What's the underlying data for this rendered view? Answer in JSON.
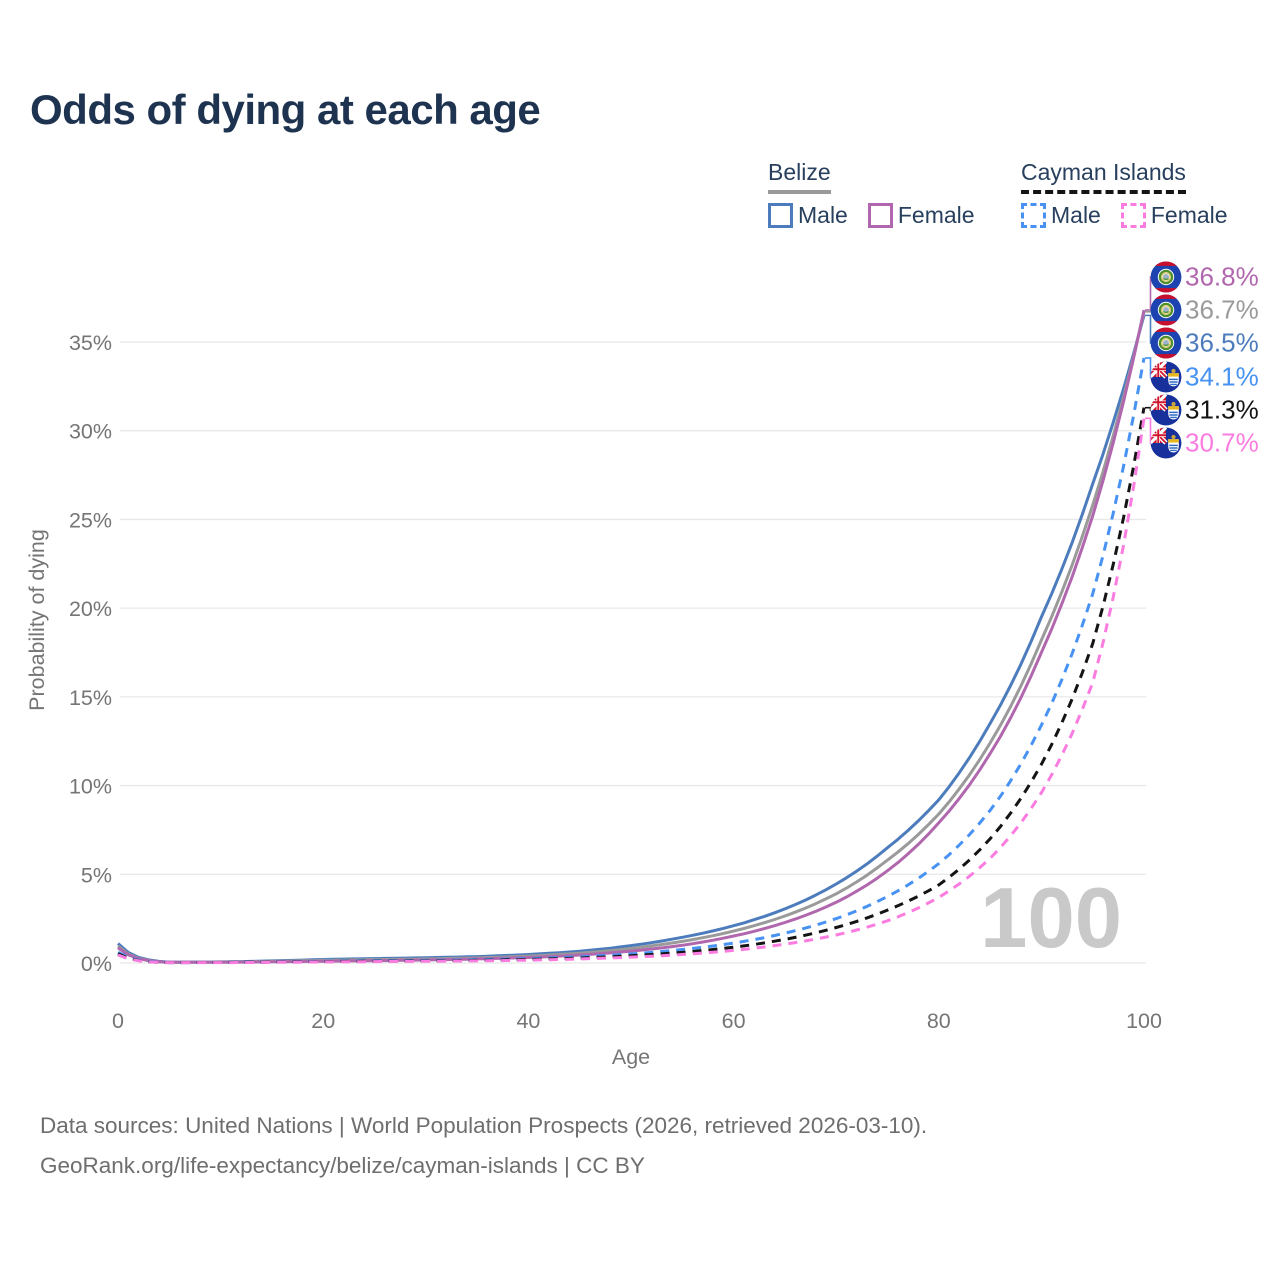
{
  "title": "Odds of dying at each age",
  "legend": {
    "groups": [
      {
        "name": "Belize",
        "underline_style": "solid",
        "underline_color": "#999999",
        "items": [
          {
            "label": "Male",
            "color": "#4d7cbd",
            "dashed": false
          },
          {
            "label": "Female",
            "color": "#b167ad",
            "dashed": false
          }
        ]
      },
      {
        "name": "Cayman Islands",
        "underline_style": "dashed",
        "underline_color": "#141414",
        "items": [
          {
            "label": "Male",
            "color": "#4792f2",
            "dashed": true
          },
          {
            "label": "Female",
            "color": "#fb7ce0",
            "dashed": true
          }
        ]
      }
    ]
  },
  "chart_data": {
    "type": "line",
    "title": "Odds of dying at each age",
    "xlabel": "Age",
    "ylabel": "Probability of dying",
    "xlim": [
      0,
      100
    ],
    "ylim": [
      0,
      37.5
    ],
    "xticks": [
      "0",
      "20",
      "40",
      "60",
      "80",
      "100"
    ],
    "xtick_values": [
      0,
      20,
      40,
      60,
      80,
      100
    ],
    "yticks": [
      "0%",
      "5%",
      "10%",
      "15%",
      "20%",
      "25%",
      "30%",
      "35%"
    ],
    "ytick_values": [
      0,
      5,
      10,
      15,
      20,
      25,
      30,
      35
    ],
    "grid": true,
    "legend_position": "top-right",
    "watermark": "100",
    "x": [
      0,
      5,
      10,
      15,
      20,
      25,
      30,
      35,
      40,
      45,
      50,
      55,
      60,
      65,
      70,
      75,
      80,
      85,
      90,
      95,
      100
    ],
    "series": [
      {
        "name": "Belize Male",
        "country": "Belize",
        "sex": "Male",
        "flag": "belize",
        "color": "#4d7cbd",
        "dashed": false,
        "end_label": "36.5%",
        "values": [
          1.1,
          0.05,
          0.06,
          0.12,
          0.2,
          0.25,
          0.3,
          0.36,
          0.48,
          0.66,
          0.98,
          1.45,
          2.1,
          3.05,
          4.45,
          6.5,
          9.2,
          13.5,
          19.5,
          27.0,
          36.5
        ]
      },
      {
        "name": "Belize Both sexes",
        "country": "Belize",
        "sex": "Both",
        "flag": "belize",
        "color": "#9a9a9a",
        "dashed": false,
        "end_label": "36.7%",
        "values": [
          0.95,
          0.04,
          0.05,
          0.09,
          0.15,
          0.19,
          0.23,
          0.29,
          0.39,
          0.55,
          0.82,
          1.22,
          1.8,
          2.65,
          3.9,
          5.8,
          8.4,
          12.4,
          18.2,
          25.8,
          36.7
        ]
      },
      {
        "name": "Belize Female",
        "country": "Belize",
        "sex": "Female",
        "flag": "belize",
        "color": "#b167ad",
        "dashed": false,
        "end_label": "36.8%",
        "values": [
          0.85,
          0.04,
          0.04,
          0.07,
          0.1,
          0.13,
          0.17,
          0.23,
          0.31,
          0.45,
          0.67,
          1.0,
          1.52,
          2.28,
          3.42,
          5.2,
          7.9,
          11.8,
          17.5,
          25.2,
          36.8
        ]
      },
      {
        "name": "Cayman Islands Male",
        "country": "Cayman Islands",
        "sex": "Male",
        "flag": "cayman",
        "color": "#4792f2",
        "dashed": true,
        "end_label": "34.1%",
        "values": [
          0.6,
          0.03,
          0.03,
          0.06,
          0.1,
          0.13,
          0.15,
          0.19,
          0.25,
          0.35,
          0.51,
          0.76,
          1.12,
          1.68,
          2.5,
          3.75,
          5.6,
          8.6,
          13.4,
          20.8,
          34.1
        ]
      },
      {
        "name": "Cayman Islands Both sexes",
        "country": "Cayman Islands",
        "sex": "Both",
        "flag": "cayman",
        "color": "#141414",
        "dashed": true,
        "end_label": "31.3%",
        "values": [
          0.52,
          0.02,
          0.03,
          0.05,
          0.08,
          0.1,
          0.12,
          0.15,
          0.2,
          0.28,
          0.41,
          0.6,
          0.89,
          1.33,
          2.0,
          2.98,
          4.4,
          7.0,
          11.2,
          18.0,
          31.3
        ]
      },
      {
        "name": "Cayman Islands Female",
        "country": "Cayman Islands",
        "sex": "Female",
        "flag": "cayman",
        "color": "#fb7ce0",
        "dashed": true,
        "end_label": "30.7%",
        "values": [
          0.45,
          0.02,
          0.02,
          0.04,
          0.06,
          0.08,
          0.1,
          0.12,
          0.16,
          0.23,
          0.33,
          0.48,
          0.71,
          1.06,
          1.58,
          2.38,
          3.7,
          5.9,
          9.6,
          15.8,
          30.7
        ]
      }
    ]
  },
  "footer": {
    "line1": "Data sources: United Nations | World Population Prospects (2026, retrieved 2026-03-10).",
    "line2": "GeoRank.org/life-expectancy/belize/cayman-islands | CC BY"
  }
}
